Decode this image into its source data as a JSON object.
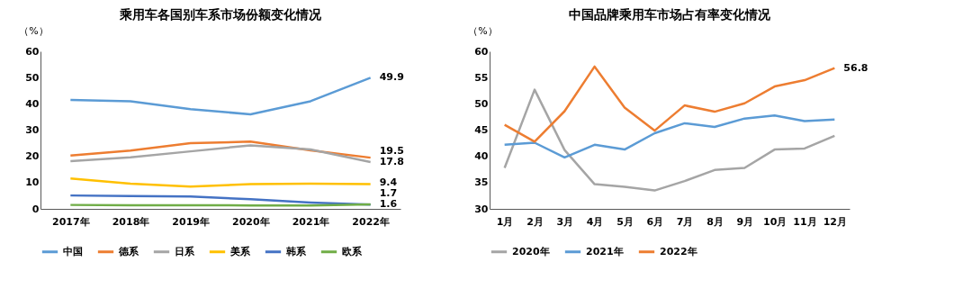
{
  "chart_data": [
    {
      "type": "line",
      "title": "乘用车各国别车系市场份额变化情况",
      "ylabel": "（%）",
      "categories": [
        "2017年",
        "2018年",
        "2019年",
        "2020年",
        "2021年",
        "2022年"
      ],
      "ylim": [
        0,
        60
      ],
      "yticks": [
        0,
        10,
        20,
        30,
        40,
        50,
        60
      ],
      "grid": false,
      "legend": "bottom",
      "marker": "none",
      "line_style": "solid",
      "series": [
        {
          "name": "中国",
          "color": "#5b9bd5",
          "values": [
            41.5,
            41,
            38,
            36,
            41,
            49.9
          ],
          "value_labels": [
            null,
            null,
            null,
            null,
            null,
            "49.9"
          ]
        },
        {
          "name": "德系",
          "color": "#ed7d31",
          "values": [
            20.3,
            22.2,
            25,
            25.6,
            22.3,
            19.5
          ],
          "value_labels": [
            null,
            null,
            null,
            null,
            null,
            "19.5"
          ]
        },
        {
          "name": "日系",
          "color": "#a5a5a5",
          "values": [
            18.2,
            19.6,
            21.9,
            24.2,
            22.6,
            17.8
          ],
          "value_labels": [
            null,
            null,
            null,
            null,
            null,
            "17.8"
          ]
        },
        {
          "name": "美系",
          "color": "#ffc000",
          "values": [
            11.6,
            9.6,
            8.5,
            9.4,
            9.6,
            9.4
          ],
          "value_labels": [
            null,
            null,
            null,
            null,
            null,
            "9.4"
          ]
        },
        {
          "name": "韩系",
          "color": "#4472c4",
          "values": [
            5.1,
            4.9,
            4.7,
            3.7,
            2.4,
            1.6
          ],
          "value_labels": [
            null,
            null,
            null,
            null,
            null,
            "1.6"
          ]
        },
        {
          "name": "欧系",
          "color": "#70ad47",
          "values": [
            1.5,
            1.4,
            1.4,
            1.3,
            1.3,
            1.7
          ],
          "value_labels": [
            null,
            null,
            null,
            null,
            null,
            "1.7"
          ]
        }
      ]
    },
    {
      "type": "line",
      "title": "中国品牌乘用车市场占有率变化情况",
      "ylabel": "（%）",
      "categories": [
        "1月",
        "2月",
        "3月",
        "4月",
        "5月",
        "6月",
        "7月",
        "8月",
        "9月",
        "10月",
        "11月",
        "12月"
      ],
      "ylim": [
        30,
        60
      ],
      "yticks": [
        30,
        35,
        40,
        45,
        50,
        55,
        60
      ],
      "grid": false,
      "legend": "bottom",
      "marker": "none",
      "line_style": "solid",
      "series": [
        {
          "name": "2020年",
          "color": "#a5a5a5",
          "values": [
            37.8,
            52.7,
            41.2,
            34.7,
            34.2,
            33.5,
            35.3,
            37.4,
            37.8,
            41.3,
            41.5,
            43.9
          ]
        },
        {
          "name": "2021年",
          "color": "#5b9bd5",
          "values": [
            42.2,
            42.6,
            39.8,
            42.2,
            41.3,
            44.4,
            46.3,
            45.6,
            47.2,
            47.8,
            46.7,
            47.0
          ]
        },
        {
          "name": "2022年",
          "color": "#ed7d31",
          "values": [
            46.0,
            42.8,
            48.6,
            57.1,
            49.3,
            44.9,
            49.7,
            48.5,
            50.1,
            53.3,
            54.5,
            56.8
          ],
          "value_labels": [
            null,
            null,
            null,
            null,
            null,
            null,
            null,
            null,
            null,
            null,
            null,
            "56.8"
          ]
        }
      ]
    }
  ]
}
